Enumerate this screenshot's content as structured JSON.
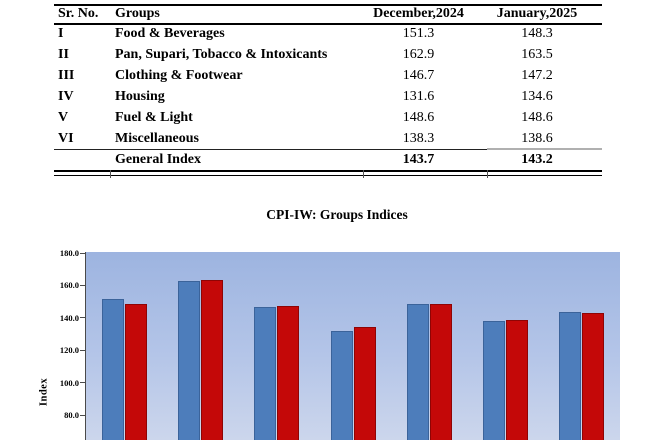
{
  "table": {
    "columns": [
      "Sr. No.",
      "Groups",
      "December,2024",
      "January,2025"
    ],
    "rows": [
      {
        "sr": "I",
        "group": "Food & Beverages",
        "dec": "151.3",
        "jan": "148.3"
      },
      {
        "sr": "II",
        "group": "Pan, Supari, Tobacco & Intoxicants",
        "dec": "162.9",
        "jan": "163.5"
      },
      {
        "sr": "III",
        "group": "Clothing & Footwear",
        "dec": "146.7",
        "jan": "147.2"
      },
      {
        "sr": "IV",
        "group": "Housing",
        "dec": "131.6",
        "jan": "134.6"
      },
      {
        "sr": "V",
        "group": "Fuel & Light",
        "dec": "148.6",
        "jan": "148.6"
      },
      {
        "sr": "VI",
        "group": "Miscellaneous",
        "dec": "138.3",
        "jan": "138.6"
      }
    ],
    "footer": {
      "sr": "",
      "group": "General Index",
      "dec": "143.7",
      "jan": "143.2"
    }
  },
  "chart_data": {
    "type": "bar",
    "title": "CPI-IW: Groups Indices",
    "xlabel": "",
    "ylabel": "Index",
    "categories": [
      "Food & Beverages",
      "Pan, Supari, Tobacco & Intoxicants",
      "Clothing & Footwear",
      "Housing",
      "Fuel & Light",
      "Miscellaneous",
      "General Index"
    ],
    "series": [
      {
        "name": "December,2024",
        "color": "#4d7dbb",
        "values": [
          151.3,
          162.9,
          146.7,
          131.6,
          148.6,
          138.3,
          143.7
        ]
      },
      {
        "name": "January,2025",
        "color": "#c40808",
        "values": [
          148.3,
          163.5,
          147.2,
          134.6,
          148.6,
          138.6,
          143.2
        ]
      }
    ],
    "y_ticks": [
      180.0,
      160.0,
      140.0,
      120.0,
      100.0,
      80.0
    ],
    "y_tick_labels": [
      "180.0",
      "160.0",
      "140.0",
      "120.0",
      "100.0",
      "80.0"
    ],
    "ylim_visible_top": 180,
    "grid": false,
    "legend_position": "not visible (chart cropped at bottom)",
    "plot_background_top": "#9db4e0",
    "plot_background_bottom": "#ccd6ec"
  }
}
